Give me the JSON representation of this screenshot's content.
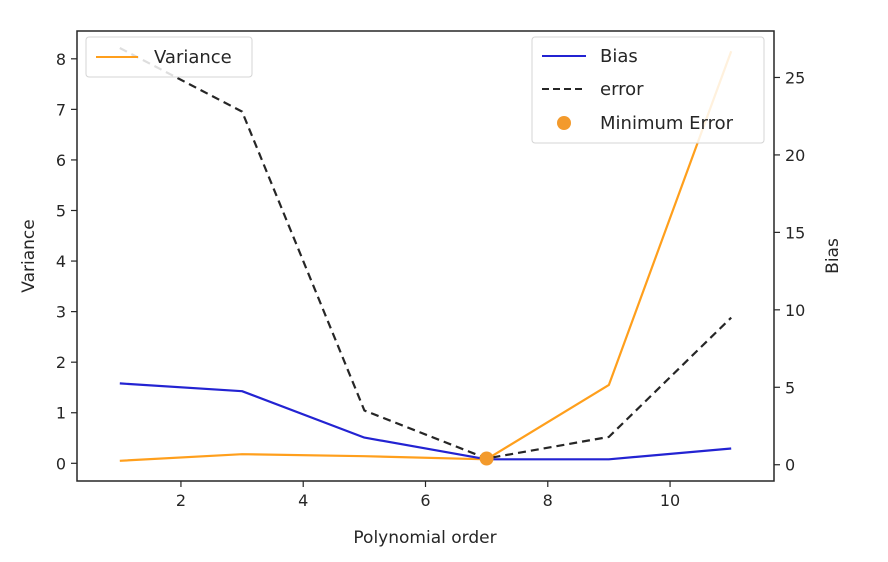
{
  "chart_data": {
    "type": "line",
    "xlabel": "Polynomial order",
    "ylabel_left": "Variance",
    "ylabel_right": "Bias",
    "xlim": [
      0.3,
      11.7
    ],
    "ylim_left": [
      -0.35,
      8.55
    ],
    "ylim_right": [
      -1.05,
      28.0
    ],
    "x_ticks": [
      2,
      4,
      6,
      8,
      10
    ],
    "y_ticks_left": [
      0,
      1,
      2,
      3,
      4,
      5,
      6,
      7,
      8
    ],
    "y_ticks_right": [
      0,
      5,
      10,
      15,
      20,
      25
    ],
    "x": [
      1,
      3,
      5,
      7,
      9,
      11
    ],
    "series": [
      {
        "name": "Variance",
        "axis": "left",
        "color": "#ff9f1c",
        "style": "solid",
        "values": [
          0.05,
          0.18,
          0.14,
          0.08,
          1.55,
          8.15
        ]
      },
      {
        "name": "Bias",
        "axis": "right",
        "color": "#2323d2",
        "style": "solid",
        "values": [
          5.25,
          4.75,
          1.75,
          0.35,
          0.35,
          1.05
        ]
      },
      {
        "name": "error",
        "axis": "right",
        "color": "#262626",
        "style": "dashed",
        "values": [
          26.9,
          22.8,
          3.5,
          0.4,
          1.8,
          9.5
        ]
      }
    ],
    "markers": [
      {
        "name": "Minimum Error",
        "axis": "right",
        "color": "#f39a2c",
        "x": 7,
        "y": 0.4
      }
    ],
    "legends": {
      "left": {
        "placement": "upper-left",
        "entries": [
          "Variance"
        ]
      },
      "right": {
        "placement": "upper-right",
        "entries": [
          "Bias",
          "error",
          "Minimum Error"
        ]
      }
    }
  }
}
